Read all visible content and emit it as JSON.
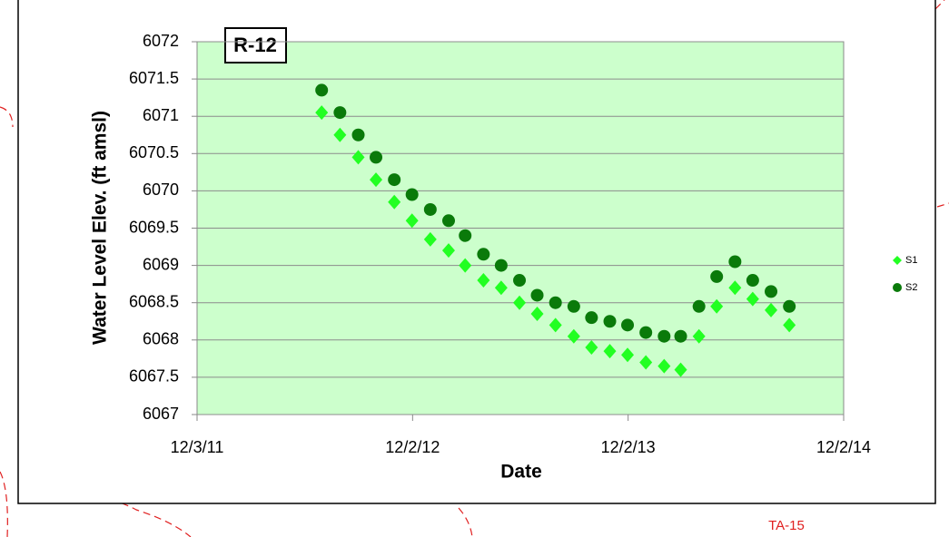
{
  "chart_data": {
    "type": "scatter",
    "title": "R-12",
    "x_label": "Date",
    "y_label": "Water Level Elev.  (ft amsl)",
    "xlim": [
      "12/3/11",
      "12/2/14"
    ],
    "xticks": [
      "12/3/11",
      "12/2/12",
      "12/2/13",
      "12/2/14"
    ],
    "ylim": [
      6067,
      6072
    ],
    "yticks": [
      6067,
      6067.5,
      6068,
      6068.5,
      6069,
      6069.5,
      6070,
      6070.5,
      6071,
      6071.5,
      6072
    ],
    "grid": true,
    "legend": "right",
    "x": [
      "7/1/12",
      "8/1/12",
      "9/1/12",
      "10/1/12",
      "11/1/12",
      "12/1/12",
      "1/1/13",
      "2/1/13",
      "3/1/13",
      "4/1/13",
      "5/1/13",
      "6/1/13",
      "7/1/13",
      "8/1/13",
      "9/1/13",
      "10/1/13",
      "11/1/13",
      "12/1/13",
      "1/1/14",
      "2/1/14",
      "3/1/14",
      "4/1/14",
      "5/1/14",
      "6/1/14",
      "7/1/14",
      "8/1/14",
      "9/1/14"
    ],
    "series": [
      {
        "name": "S1",
        "color": "#22ff22",
        "marker": "diamond",
        "values": [
          6071.05,
          6070.75,
          6070.45,
          6070.15,
          6069.85,
          6069.6,
          6069.35,
          6069.2,
          6069.0,
          6068.8,
          6068.7,
          6068.5,
          6068.35,
          6068.2,
          6068.05,
          6067.9,
          6067.85,
          6067.8,
          6067.7,
          6067.65,
          6067.6,
          6068.05,
          6068.45,
          6068.7,
          6068.55,
          6068.4,
          6068.2
        ]
      },
      {
        "name": "S2",
        "color": "#0a7a0a",
        "marker": "circle",
        "values": [
          6071.35,
          6071.05,
          6070.75,
          6070.45,
          6070.15,
          6069.95,
          6069.75,
          6069.6,
          6069.4,
          6069.15,
          6069.0,
          6068.8,
          6068.6,
          6068.5,
          6068.45,
          6068.3,
          6068.25,
          6068.2,
          6068.1,
          6068.05,
          6068.05,
          6068.45,
          6068.85,
          6069.05,
          6068.8,
          6068.65,
          6068.45
        ]
      }
    ]
  },
  "map_label": "TA-15"
}
